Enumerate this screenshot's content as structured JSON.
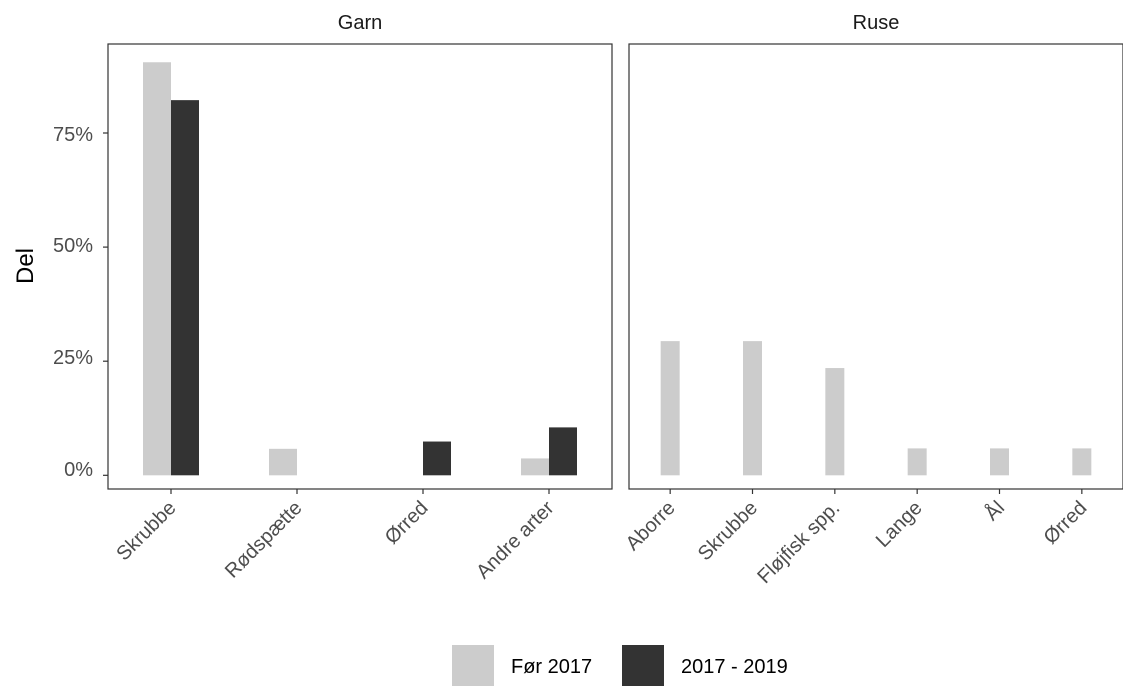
{
  "chart_data": {
    "type": "bar",
    "ylabel": "Del",
    "y_ticks": [
      "0%",
      "25%",
      "50%",
      "75%"
    ],
    "y_tick_values": [
      0,
      0.25,
      0.5,
      0.75
    ],
    "ylim": [
      -0.03,
      0.945
    ],
    "legend_position": "bottom",
    "series": [
      {
        "name": "Før 2017",
        "color": "#cccccc"
      },
      {
        "name": "2017 - 2019",
        "color": "#333333"
      }
    ],
    "panels": [
      {
        "title": "Garn",
        "categories": [
          "Skrubbe",
          "Rødspætte",
          "Ørred",
          "Andre arter"
        ],
        "values": {
          "Før 2017": [
            0.905,
            0.058,
            null,
            0.037
          ],
          "2017 - 2019": [
            0.822,
            null,
            0.074,
            0.105
          ]
        }
      },
      {
        "title": "Ruse",
        "categories": [
          "Aborre",
          "Skrubbe",
          "Fløjfisk spp.",
          "Lange",
          "Ål",
          "Ørred"
        ],
        "values": {
          "Før 2017": [
            0.294,
            0.294,
            0.235,
            0.059,
            0.059,
            0.059
          ]
        }
      }
    ]
  }
}
